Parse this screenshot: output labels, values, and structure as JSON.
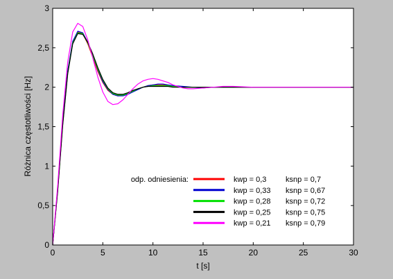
{
  "chart_data": {
    "type": "line",
    "xlabel": "t [s]",
    "ylabel": "Różnica częstotliwości [Hz]",
    "xlim": [
      0,
      30
    ],
    "ylim": [
      0,
      3
    ],
    "xticks": [
      0,
      5,
      10,
      15,
      20,
      25,
      30
    ],
    "yticks": [
      0,
      0.5,
      1,
      1.5,
      2,
      2.5,
      3
    ],
    "xtick_labels": [
      "0",
      "5",
      "10",
      "15",
      "20",
      "25",
      "30"
    ],
    "ytick_labels": [
      "0",
      "0.5",
      "1",
      "1.5",
      "2",
      "2.5",
      "3"
    ],
    "ytick_labels_display": [
      "0",
      "0,5",
      "1",
      "1,5",
      "2",
      "2,5",
      "3"
    ],
    "grid": false,
    "legend_position": "bottom-right",
    "series": [
      {
        "legend_prefix": "odp. odniesienia:",
        "kwp_label": "kwp = 0,3",
        "ksnp_label": "ksnp = 0,7",
        "color": "#ff0000",
        "x": [
          0,
          0.5,
          1,
          1.5,
          2,
          2.5,
          3,
          3.5,
          4,
          4.5,
          5,
          5.5,
          6,
          6.5,
          7,
          7.5,
          8,
          8.5,
          9,
          9.5,
          10,
          10.5,
          11,
          11.5,
          12,
          13,
          14,
          15,
          16,
          17,
          18,
          20,
          22,
          25,
          30
        ],
        "y": [
          0,
          0.7,
          1.55,
          2.2,
          2.57,
          2.7,
          2.68,
          2.55,
          2.38,
          2.2,
          2.06,
          1.96,
          1.91,
          1.89,
          1.9,
          1.92,
          1.95,
          1.98,
          2.0,
          2.02,
          2.03,
          2.03,
          2.03,
          2.02,
          2.01,
          2.0,
          2.0,
          2.0,
          2.0,
          2.0,
          2.0,
          2.0,
          2.0,
          2.0,
          2.0
        ]
      },
      {
        "kwp_label": "kwp = 0,33",
        "ksnp_label": "ksnp = 0,67",
        "color": "#0000d0",
        "x": [
          0,
          0.5,
          1,
          1.5,
          2,
          2.5,
          3,
          3.5,
          4,
          4.5,
          5,
          5.5,
          6,
          6.5,
          7,
          7.5,
          8,
          8.5,
          9,
          9.5,
          10,
          10.5,
          11,
          11.5,
          12,
          13,
          14,
          15,
          16,
          17,
          18,
          20,
          22,
          25,
          30
        ],
        "y": [
          0,
          0.72,
          1.57,
          2.21,
          2.58,
          2.71,
          2.69,
          2.57,
          2.4,
          2.22,
          2.07,
          1.97,
          1.91,
          1.89,
          1.89,
          1.91,
          1.94,
          1.97,
          2.0,
          2.02,
          2.03,
          2.04,
          2.04,
          2.03,
          2.02,
          2.01,
          2.0,
          1.99,
          2.0,
          2.0,
          2.0,
          2.0,
          2.0,
          2.0,
          2.0
        ]
      },
      {
        "kwp_label": "kwp = 0,28",
        "ksnp_label": "ksnp = 0,72",
        "color": "#00e000",
        "x": [
          0,
          0.5,
          1,
          1.5,
          2,
          2.5,
          3,
          3.5,
          4,
          4.5,
          5,
          5.5,
          6,
          6.5,
          7,
          7.5,
          8,
          8.5,
          9,
          9.5,
          10,
          10.5,
          11,
          11.5,
          12,
          13,
          14,
          15,
          16,
          17,
          18,
          20,
          22,
          25,
          30
        ],
        "y": [
          0,
          0.69,
          1.53,
          2.18,
          2.56,
          2.69,
          2.68,
          2.56,
          2.4,
          2.23,
          2.09,
          1.98,
          1.92,
          1.9,
          1.9,
          1.92,
          1.95,
          1.98,
          2.0,
          2.01,
          2.02,
          2.02,
          2.02,
          2.02,
          2.01,
          2.0,
          2.0,
          2.0,
          2.0,
          2.0,
          2.0,
          2.0,
          2.0,
          2.0,
          2.0
        ]
      },
      {
        "kwp_label": "kwp = 0,25",
        "ksnp_label": "ksnp = 0,75",
        "color": "#000000",
        "x": [
          0,
          0.5,
          1,
          1.5,
          2,
          2.5,
          3,
          3.5,
          4,
          4.5,
          5,
          5.5,
          6,
          6.5,
          7,
          7.5,
          8,
          8.5,
          9,
          9.5,
          10,
          10.5,
          11,
          11.5,
          12,
          13,
          14,
          15,
          16,
          17,
          18,
          20,
          22,
          25,
          30
        ],
        "y": [
          0,
          0.68,
          1.52,
          2.17,
          2.55,
          2.68,
          2.67,
          2.57,
          2.42,
          2.25,
          2.1,
          1.99,
          1.93,
          1.91,
          1.91,
          1.93,
          1.96,
          1.98,
          2.0,
          2.01,
          2.01,
          2.01,
          2.01,
          2.01,
          2.0,
          2.0,
          2.0,
          2.0,
          2.0,
          2.0,
          2.0,
          2.0,
          2.0,
          2.0,
          2.0
        ]
      },
      {
        "kwp_label": "kwp = 0,21",
        "ksnp_label": "ksnp = 0,79",
        "color": "#ff00ff",
        "x": [
          0,
          0.5,
          1,
          1.5,
          2,
          2.5,
          3,
          3.5,
          4,
          4.5,
          5,
          5.5,
          6,
          6.5,
          7,
          7.5,
          8,
          8.5,
          9,
          9.5,
          10,
          10.5,
          11,
          11.5,
          12,
          12.5,
          13,
          13.5,
          14,
          15,
          16,
          17,
          18,
          20,
          22,
          25,
          30
        ],
        "y": [
          0,
          0.75,
          1.65,
          2.32,
          2.7,
          2.81,
          2.77,
          2.6,
          2.37,
          2.13,
          1.94,
          1.82,
          1.78,
          1.79,
          1.84,
          1.91,
          1.98,
          2.04,
          2.08,
          2.1,
          2.11,
          2.1,
          2.08,
          2.06,
          2.03,
          2.01,
          1.99,
          1.98,
          1.98,
          1.99,
          2.0,
          2.01,
          2.01,
          2.0,
          2.0,
          2.0,
          2.0
        ]
      }
    ]
  }
}
